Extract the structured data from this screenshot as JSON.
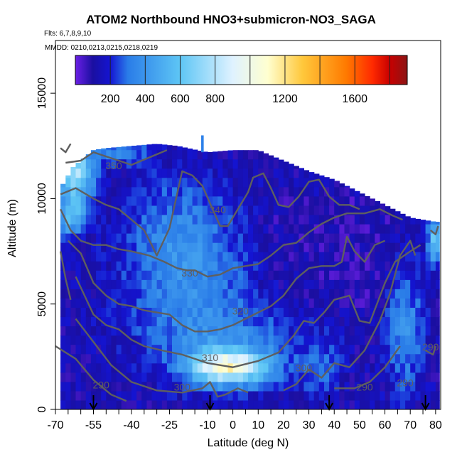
{
  "title": "ATOM2 Northbound HNO3+submicron-NO3_SAGA",
  "flights_label": "Flts: 6,7,8,9,10",
  "mmdd_label": "MMDD: 0210,0213,0215,0218,0219",
  "chart_data": {
    "type": "heatmap",
    "title": "ATOM2 Northbound HNO3+submicron-NO3_SAGA",
    "xlabel": "Latitude (deg N)",
    "ylabel": "Altitude (m)",
    "xlim": [
      -70,
      82
    ],
    "ylim": [
      0,
      17500
    ],
    "x_ticks": [
      -70,
      -55,
      -40,
      -25,
      -10,
      0,
      10,
      20,
      30,
      40,
      50,
      60,
      70,
      80
    ],
    "x_ticks_unlabeled": [
      -65,
      -60,
      -50,
      -45,
      -35,
      -30,
      -20,
      -15,
      -5,
      5,
      15,
      25,
      35,
      45,
      55,
      65,
      75
    ],
    "y_ticks": [
      0,
      5000,
      10000,
      15000
    ],
    "colorbar": {
      "range": [
        0,
        1900
      ],
      "tick_labels": [
        200,
        400,
        600,
        800,
        1200,
        1600
      ],
      "boundaries": [
        200,
        400,
        600,
        800,
        1000,
        1200,
        1400,
        1600,
        1800
      ],
      "colors": [
        "#6b1fe6",
        "#1a0fa0",
        "#1414d2",
        "#2a7ce8",
        "#5ec6f5",
        "#dff2ff",
        "#ffffd0",
        "#ffc83c",
        "#ff7a00",
        "#ff2a00",
        "#c80000",
        "#8b1515"
      ]
    },
    "contours": [
      {
        "label": "290",
        "points": [
          [
            -70,
            3000
          ],
          [
            -62,
            2400
          ],
          [
            -55,
            1400
          ],
          [
            -48,
            700
          ],
          [
            -42,
            400
          ]
        ]
      },
      {
        "label": "290",
        "points": [
          [
            40,
            1000
          ],
          [
            48,
            1000
          ],
          [
            54,
            1300
          ],
          [
            60,
            2000
          ],
          [
            66,
            3000
          ]
        ]
      },
      {
        "label": "290",
        "points": [
          [
            76,
            2800
          ],
          [
            79,
            2600
          ],
          [
            80,
            3000
          ]
        ]
      },
      {
        "label": "300",
        "points": [
          [
            -62,
            4300
          ],
          [
            -55,
            3200
          ],
          [
            -48,
            2100
          ],
          [
            -40,
            1300
          ],
          [
            -30,
            900
          ],
          [
            -20,
            800
          ],
          [
            -12,
            1000
          ],
          [
            -9,
            1300
          ],
          [
            -6,
            600
          ],
          [
            -3,
            700
          ],
          [
            2,
            1000
          ],
          [
            6,
            800
          ]
        ]
      },
      {
        "label": "300",
        "points": [
          [
            20,
            900
          ],
          [
            25,
            1200
          ],
          [
            30,
            1900
          ],
          [
            35,
            1500
          ],
          [
            40,
            2200
          ],
          [
            46,
            2000
          ],
          [
            52,
            2800
          ],
          [
            58,
            4200
          ],
          [
            62,
            5500
          ],
          [
            66,
            7300
          ],
          [
            70,
            8000
          ],
          [
            72,
            7300
          ]
        ]
      },
      {
        "label": "310",
        "points": [
          [
            -62,
            6300
          ],
          [
            -55,
            4500
          ],
          [
            -50,
            4000
          ],
          [
            -45,
            3800
          ],
          [
            -40,
            3300
          ],
          [
            -35,
            3000
          ],
          [
            -28,
            2800
          ],
          [
            -20,
            2600
          ],
          [
            -10,
            2200
          ],
          [
            0,
            2000
          ],
          [
            10,
            2300
          ],
          [
            18,
            2700
          ],
          [
            24,
            3500
          ],
          [
            28,
            4200
          ],
          [
            32,
            4100
          ],
          [
            36,
            4600
          ],
          [
            40,
            5200
          ],
          [
            46,
            5400
          ],
          [
            50,
            4200
          ],
          [
            54,
            4100
          ],
          [
            60,
            6000
          ],
          [
            64,
            7000
          ],
          [
            70,
            7500
          ],
          [
            74,
            7800
          ]
        ]
      },
      {
        "label": "320",
        "points": [
          [
            -65,
            8000
          ],
          [
            -60,
            7400
          ],
          [
            -55,
            6000
          ],
          [
            -50,
            5400
          ],
          [
            -45,
            5000
          ],
          [
            -40,
            4900
          ],
          [
            -35,
            4700
          ],
          [
            -30,
            4600
          ],
          [
            -25,
            4500
          ],
          [
            -20,
            4000
          ],
          [
            -15,
            3700
          ],
          [
            -10,
            3700
          ],
          [
            -5,
            3800
          ],
          [
            0,
            4000
          ],
          [
            5,
            4300
          ],
          [
            10,
            4600
          ],
          [
            15,
            4900
          ],
          [
            20,
            5400
          ],
          [
            25,
            6200
          ],
          [
            30,
            6700
          ],
          [
            35,
            6800
          ],
          [
            40,
            6800
          ],
          [
            43,
            7000
          ],
          [
            45,
            8200
          ],
          [
            48,
            7500
          ],
          [
            52,
            7000
          ],
          [
            56,
            7800
          ],
          [
            60,
            8000
          ]
        ]
      },
      {
        "label": "330",
        "points": [
          [
            -68,
            9500
          ],
          [
            -64,
            8500
          ],
          [
            -60,
            8000
          ],
          [
            -55,
            7800
          ],
          [
            -50,
            7800
          ],
          [
            -45,
            7600
          ],
          [
            -40,
            7500
          ],
          [
            -33,
            7300
          ],
          [
            -27,
            7000
          ],
          [
            -22,
            6700
          ],
          [
            -18,
            6600
          ],
          [
            -15,
            6600
          ],
          [
            -10,
            6300
          ],
          [
            -5,
            6400
          ],
          [
            0,
            6700
          ],
          [
            5,
            6800
          ],
          [
            10,
            6900
          ],
          [
            15,
            7300
          ],
          [
            20,
            7800
          ],
          [
            25,
            7900
          ],
          [
            30,
            8400
          ],
          [
            35,
            8800
          ],
          [
            40,
            9100
          ],
          [
            45,
            9300
          ],
          [
            52,
            9300
          ],
          [
            58,
            9500
          ],
          [
            63,
            9200
          ],
          [
            67,
            9000
          ]
        ]
      },
      {
        "label": "340",
        "points": [
          [
            -68,
            10200
          ],
          [
            -62,
            10500
          ],
          [
            -55,
            10000
          ],
          [
            -50,
            9700
          ],
          [
            -45,
            9500
          ],
          [
            -40,
            9000
          ],
          [
            -35,
            8500
          ],
          [
            -32,
            7800
          ],
          [
            -30,
            7300
          ],
          [
            -25,
            8600
          ],
          [
            -20,
            11300
          ],
          [
            -16,
            11100
          ],
          [
            -12,
            10600
          ],
          [
            -8,
            9500
          ],
          [
            -5,
            8700
          ],
          [
            -2,
            8700
          ],
          [
            2,
            9500
          ],
          [
            6,
            10300
          ],
          [
            8,
            11000
          ],
          [
            12,
            11200
          ],
          [
            15,
            10500
          ],
          [
            18,
            9700
          ],
          [
            22,
            9600
          ],
          [
            26,
            10100
          ],
          [
            30,
            10800
          ],
          [
            34,
            10900
          ],
          [
            38,
            10100
          ],
          [
            42,
            9700
          ],
          [
            46,
            9700
          ],
          [
            50,
            9500
          ]
        ]
      },
      {
        "label": "350",
        "points": [
          [
            -66,
            11700
          ],
          [
            -60,
            11800
          ],
          [
            -55,
            12200
          ],
          [
            -50,
            12000
          ],
          [
            -45,
            11800
          ],
          [
            -40,
            11600
          ],
          [
            -30,
            12100
          ],
          [
            -26,
            12300
          ]
        ]
      },
      {
        "label": "",
        "points": [
          [
            -68,
            7500
          ],
          [
            -66,
            6200
          ],
          [
            -64,
            5200
          ]
        ]
      },
      {
        "label": "",
        "points": [
          [
            78,
            8500
          ],
          [
            80,
            8300
          ],
          [
            81,
            8700
          ]
        ]
      },
      {
        "label": "",
        "points": [
          [
            -68,
            12400
          ],
          [
            -66,
            12200
          ],
          [
            -64,
            12600
          ]
        ]
      }
    ],
    "contour_label_positions": [
      {
        "text": "350",
        "x": -47,
        "y": 11400
      },
      {
        "text": "340",
        "x": -6,
        "y": 9300
      },
      {
        "text": "330",
        "x": -17,
        "y": 6300
      },
      {
        "text": "320",
        "x": 3,
        "y": 4500
      },
      {
        "text": "310",
        "x": -9,
        "y": 2300
      },
      {
        "text": "300",
        "x": -20,
        "y": 900
      },
      {
        "text": "300",
        "x": 28,
        "y": 1800
      },
      {
        "text": "290",
        "x": -52,
        "y": 1000
      },
      {
        "text": "290",
        "x": 52,
        "y": 900
      },
      {
        "text": "290",
        "x": 68,
        "y": 1100
      },
      {
        "text": "290",
        "x": 78,
        "y": 2800
      }
    ],
    "arrows_latitude": [
      -55,
      -9,
      38,
      76
    ]
  }
}
